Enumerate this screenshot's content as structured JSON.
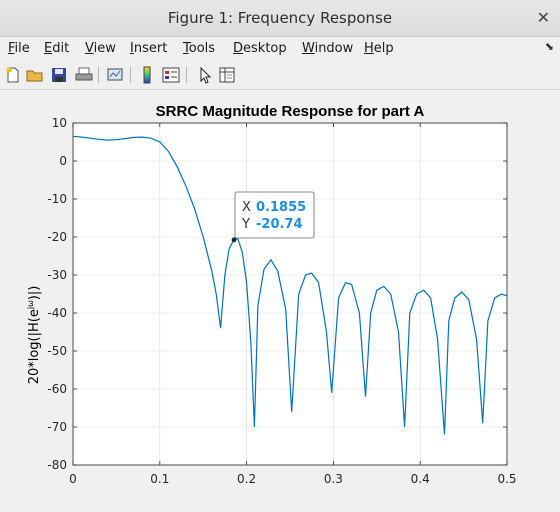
{
  "window": {
    "title": "Figure 1: Frequency Response"
  },
  "menu": [
    "File",
    "Edit",
    "View",
    "Insert",
    "Tools",
    "Desktop",
    "Window",
    "Help"
  ],
  "toolbar": [
    "new-figure",
    "open-file",
    "save",
    "print",
    "link-plot",
    "insert-colorbar",
    "insert-legend",
    "edit-plot",
    "property-inspector"
  ],
  "chart_data": {
    "type": "line",
    "title": "SRRC Magnitude Response for part A",
    "xlabel": "",
    "ylabel": "20*log(|H(e",
    "ylabel_sup": "jω",
    "ylabel_end": ")|)",
    "xlim": [
      0,
      0.5
    ],
    "ylim": [
      -80,
      10
    ],
    "xticks": [
      "0",
      "0.1",
      "0.2",
      "0.3",
      "0.4",
      "0.5"
    ],
    "yticks": [
      "10",
      "0",
      "-10",
      "-20",
      "-30",
      "-40",
      "-50",
      "-60",
      "-70",
      "-80"
    ],
    "grid": true,
    "color": "#0072bd",
    "series": [
      {
        "x": [
          0,
          0.01,
          0.02,
          0.03,
          0.04,
          0.05,
          0.06,
          0.07,
          0.08,
          0.09,
          0.1,
          0.11,
          0.12,
          0.13,
          0.14,
          0.15,
          0.16,
          0.165,
          0.17,
          0.175,
          0.18,
          0.1855,
          0.19,
          0.195,
          0.2,
          0.205,
          0.209,
          0.213,
          0.22,
          0.228,
          0.236,
          0.245,
          0.252,
          0.26,
          0.268,
          0.275,
          0.283,
          0.292,
          0.298,
          0.306,
          0.314,
          0.321,
          0.33,
          0.337,
          0.343,
          0.35,
          0.358,
          0.366,
          0.375,
          0.382,
          0.388,
          0.396,
          0.404,
          0.412,
          0.42,
          0.428,
          0.433,
          0.44,
          0.448,
          0.456,
          0.465,
          0.472,
          0.478,
          0.486,
          0.494,
          0.5
        ],
        "y": [
          6.5,
          6.3,
          6.0,
          5.7,
          5.5,
          5.6,
          5.9,
          6.2,
          6.3,
          6.0,
          5.0,
          2.5,
          -1.5,
          -6.5,
          -12.5,
          -20.0,
          -29.0,
          -35.0,
          -44.0,
          -30.0,
          -23.0,
          -20.74,
          -20.5,
          -24.0,
          -32.0,
          -48.0,
          -70.0,
          -38.0,
          -28.5,
          -26.0,
          -29.0,
          -39.0,
          -66.0,
          -35.0,
          -30.0,
          -29.5,
          -32.0,
          -45.0,
          -61.0,
          -36.0,
          -32.0,
          -32.5,
          -40.0,
          -62.0,
          -40.0,
          -34.0,
          -33.0,
          -35.0,
          -45.0,
          -70.0,
          -40.0,
          -35.0,
          -34.0,
          -36.0,
          -47.0,
          -72.0,
          -42.0,
          -36.0,
          -34.5,
          -36.5,
          -47.0,
          -69.0,
          -42.0,
          -36.0,
          -35.0,
          -35.5
        ]
      }
    ],
    "datatip": {
      "x": 0.1855,
      "y": -20.74,
      "x_label": "X",
      "y_label": "Y",
      "x_text": "0.1855",
      "y_text": "-20.74"
    }
  }
}
